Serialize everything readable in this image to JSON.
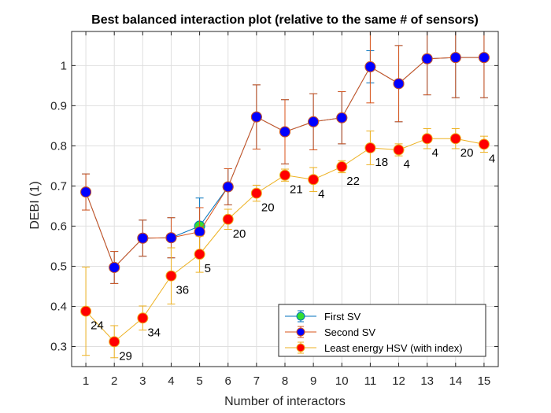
{
  "chart_data": {
    "type": "line",
    "title": "Best balanced interaction plot (relative to the same # of sensors)",
    "xlabel": "Number of interactors",
    "ylabel": "DEBI (1)",
    "xlim": [
      0.5,
      15.5
    ],
    "ylim": [
      0.25,
      1.085
    ],
    "xticks": [
      1,
      2,
      3,
      4,
      5,
      6,
      7,
      8,
      9,
      10,
      11,
      12,
      13,
      14,
      15
    ],
    "yticks": [
      0.3,
      0.4,
      0.5,
      0.6,
      0.7,
      0.8,
      0.9,
      1
    ],
    "ytick_labels": [
      "0.3",
      "0.4",
      "0.5",
      "0.6",
      "0.7",
      "0.8",
      "0.9",
      "1"
    ],
    "grid": true,
    "legend_position": "bottom-right",
    "series": [
      {
        "name": "First SV",
        "line_color": "#0072BD",
        "marker_color": "#33DD33",
        "x": [
          1,
          2,
          3,
          4,
          5,
          6,
          7,
          8,
          9,
          10,
          11,
          12,
          13,
          14,
          15
        ],
        "y": [
          0.685,
          0.497,
          0.57,
          0.571,
          0.6,
          0.698,
          0.872,
          0.835,
          0.86,
          0.87,
          0.997,
          0.955,
          1.017,
          1.02,
          1.02
        ],
        "err": [
          0.045,
          0.04,
          0.045,
          0.05,
          0.07,
          0.045,
          0.08,
          0.08,
          0.07,
          0.065,
          0.04,
          0.095,
          0.09,
          0.1,
          0.1
        ]
      },
      {
        "name": "Second SV",
        "line_color": "#D95319",
        "marker_color": "#0000FF",
        "x": [
          1,
          2,
          3,
          4,
          5,
          6,
          7,
          8,
          9,
          10,
          11,
          12,
          13,
          14,
          15
        ],
        "y": [
          0.685,
          0.497,
          0.57,
          0.571,
          0.586,
          0.698,
          0.872,
          0.835,
          0.86,
          0.87,
          0.997,
          0.955,
          1.017,
          1.02,
          1.02
        ],
        "err": [
          0.045,
          0.04,
          0.045,
          0.05,
          0.06,
          0.045,
          0.08,
          0.08,
          0.07,
          0.065,
          0.09,
          0.095,
          0.09,
          0.1,
          0.1
        ]
      },
      {
        "name": "Least energy HSV (with index)",
        "line_color": "#EDB120",
        "marker_color": "#FF0000",
        "x": [
          1,
          2,
          3,
          4,
          5,
          6,
          7,
          8,
          9,
          10,
          11,
          12,
          13,
          14,
          15
        ],
        "y": [
          0.388,
          0.312,
          0.371,
          0.476,
          0.53,
          0.617,
          0.682,
          0.727,
          0.716,
          0.748,
          0.795,
          0.79,
          0.818,
          0.818,
          0.804
        ],
        "err": [
          0.11,
          0.04,
          0.03,
          0.07,
          0.045,
          0.025,
          0.02,
          0.015,
          0.03,
          0.015,
          0.042,
          0.015,
          0.025,
          0.025,
          0.02
        ],
        "labels": [
          "24",
          "29",
          "34",
          "36",
          "5",
          "20",
          "20",
          "21",
          "4",
          "22",
          "18",
          "4",
          "4",
          "20",
          "4"
        ]
      }
    ]
  }
}
